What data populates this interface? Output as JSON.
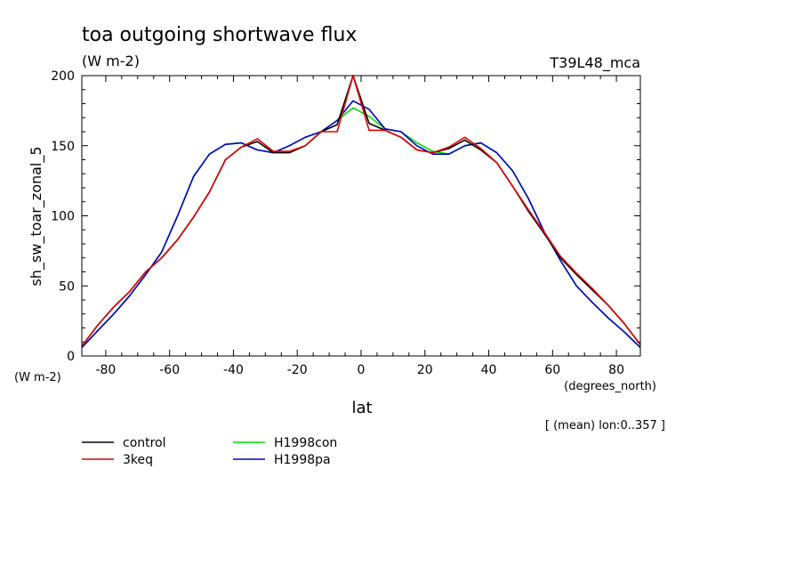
{
  "chart_data": {
    "type": "line",
    "title": "toa outgoing shortwave flux",
    "units_label": "(W m-2)",
    "model_label": "T39L48_mca",
    "ylabel": "sh_sw_toar_zonal_5",
    "yunits": "(W m-2)",
    "xlabel": "lat",
    "xunits": "(degrees_north)",
    "subset_note": "[ (mean) lon:0..357 ]",
    "xlim": [
      -87.5,
      87.5
    ],
    "ylim": [
      0,
      200
    ],
    "xticks": [
      -80,
      -60,
      -40,
      -20,
      0,
      20,
      40,
      60,
      80
    ],
    "xtick_labels": [
      "-80",
      "-60",
      "-40",
      "-20",
      "0",
      "20",
      "40",
      "60",
      "80"
    ],
    "yticks": [
      0,
      50,
      100,
      150,
      200
    ],
    "ytick_labels": [
      "0",
      "50",
      "100",
      "150",
      "200"
    ],
    "x": [
      -87.5,
      -82.5,
      -77.5,
      -72.5,
      -67.5,
      -62.5,
      -57.5,
      -52.5,
      -47.5,
      -42.5,
      -37.5,
      -32.5,
      -27.5,
      -22.5,
      -17.5,
      -12.5,
      -7.5,
      -2.5,
      2.5,
      7.5,
      12.5,
      17.5,
      22.5,
      27.5,
      32.5,
      37.5,
      42.5,
      47.5,
      52.5,
      57.5,
      62.5,
      67.5,
      72.5,
      77.5,
      82.5,
      87.5
    ],
    "series": [
      {
        "name": "control",
        "color": "#000000",
        "values": [
          7,
          22,
          35,
          46,
          60,
          70,
          83,
          99,
          117,
          140,
          149,
          153,
          145,
          145,
          150,
          160,
          165,
          200,
          166,
          161,
          156,
          147,
          145,
          148,
          154,
          147,
          138,
          121,
          103,
          87,
          70,
          58,
          47,
          36,
          23,
          8
        ]
      },
      {
        "name": "3keq",
        "color": "#e00000",
        "values": [
          7,
          22,
          35,
          46,
          60,
          70,
          83,
          99,
          117,
          140,
          149,
          155,
          146,
          146,
          150,
          160,
          160,
          200,
          161,
          161,
          156,
          147,
          145,
          149,
          156,
          148,
          138,
          121,
          104,
          88,
          71,
          59,
          48,
          36,
          23,
          8
        ]
      },
      {
        "name": "H1998con",
        "color": "#00dd00",
        "values": [
          6,
          18,
          30,
          43,
          58,
          74,
          100,
          128,
          144,
          151,
          152,
          147,
          145,
          150,
          156,
          160,
          168,
          177,
          171,
          162,
          160,
          152,
          146,
          144,
          150,
          152,
          145,
          132,
          112,
          88,
          68,
          50,
          38,
          27,
          17,
          6
        ]
      },
      {
        "name": "H1998pa",
        "color": "#0000cc",
        "values": [
          6,
          18,
          30,
          43,
          58,
          74,
          100,
          128,
          144,
          151,
          152,
          147,
          145,
          150,
          156,
          160,
          168,
          182,
          176,
          162,
          160,
          150,
          144,
          144,
          150,
          152,
          145,
          132,
          112,
          88,
          68,
          50,
          38,
          27,
          17,
          6
        ]
      }
    ]
  }
}
